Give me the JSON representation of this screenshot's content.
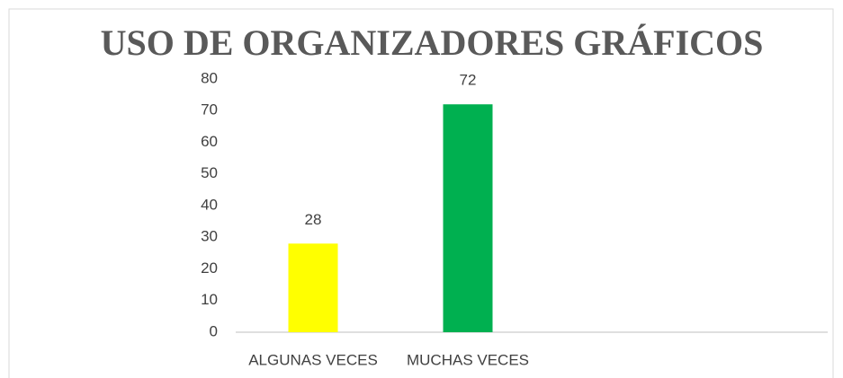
{
  "chart_data": {
    "type": "bar",
    "title": "USO DE ORGANIZADORES GRÁFICOS",
    "categories": [
      "ALGUNAS VECES",
      "MUCHAS VECES"
    ],
    "values": [
      28,
      72
    ],
    "colors": [
      "#ffff00",
      "#00b050"
    ],
    "ylim": [
      0,
      80
    ],
    "yticks": [
      0,
      10,
      20,
      30,
      40,
      50,
      60,
      70,
      80
    ],
    "grid": false
  }
}
